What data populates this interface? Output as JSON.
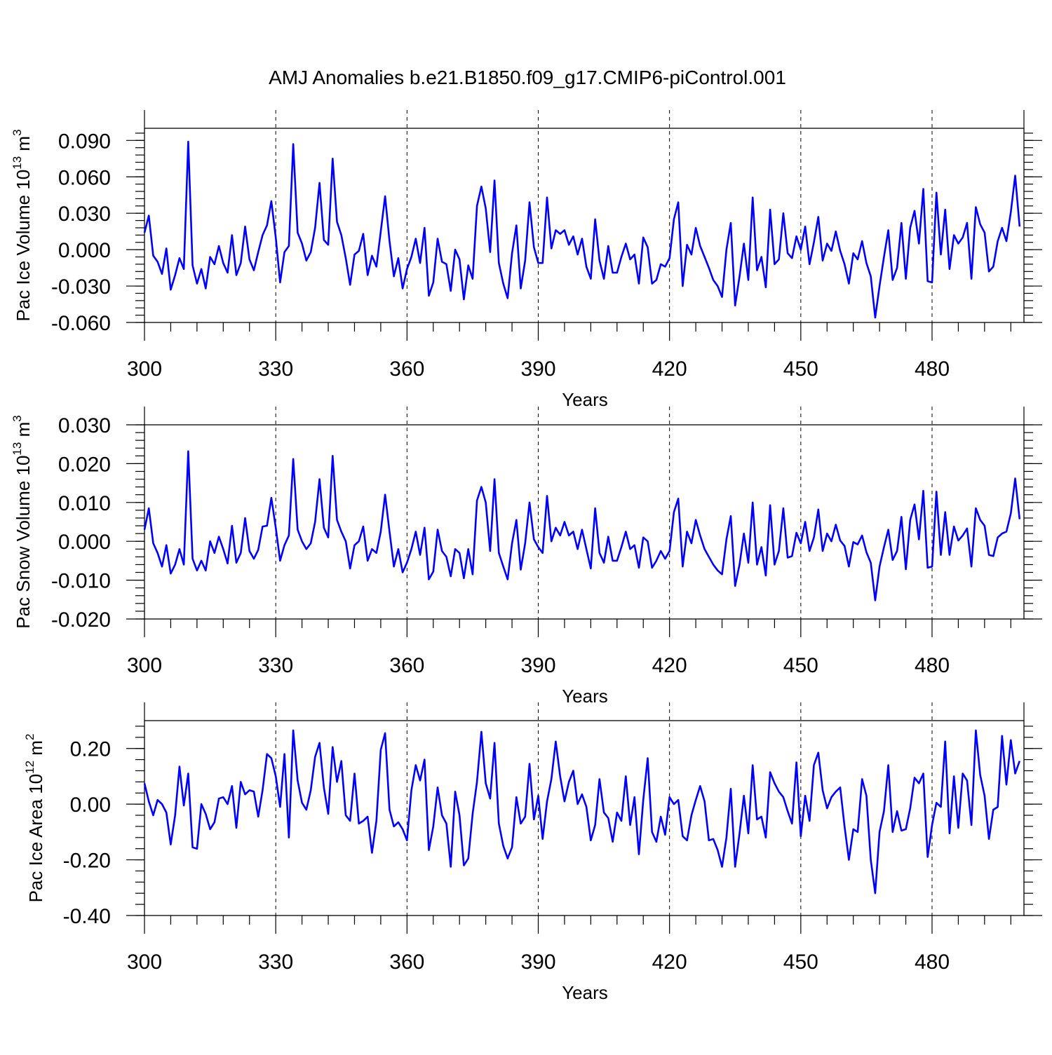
{
  "title": "AMJ Anomalies b.e21.B1850.f09_g17.CMIP6-piControl.001",
  "line_color": "#0000ff",
  "chart_data": [
    {
      "type": "line",
      "ylabel_main": "Pac Ice Volume 10",
      "ylabel_exp": "13",
      "ylabel_unit": " m",
      "ylabel_unit_exp": "3",
      "xlabel": "Years",
      "xlim": [
        300,
        501
      ],
      "ylim": [
        -0.06,
        0.1
      ],
      "yticks": [
        -0.06,
        -0.03,
        0.0,
        0.03,
        0.06,
        0.09
      ],
      "ytick_labels": [
        "-0.060",
        "-0.030",
        "0.000",
        "0.030",
        "0.060",
        "0.090"
      ],
      "xticks": [
        300,
        330,
        360,
        390,
        420,
        450,
        480
      ],
      "xtick_labels": [
        "300",
        "330",
        "360",
        "390",
        "420",
        "450",
        "480"
      ],
      "grid_x": [
        330,
        360,
        390,
        420,
        450,
        480
      ],
      "x_start": 300,
      "values": [
        0.014,
        0.028,
        -0.005,
        -0.01,
        -0.02,
        0.001,
        -0.033,
        -0.021,
        -0.007,
        -0.016,
        0.089,
        -0.013,
        -0.028,
        -0.016,
        -0.032,
        -0.006,
        -0.012,
        0.003,
        -0.011,
        -0.019,
        0.012,
        -0.021,
        -0.011,
        0.019,
        -0.008,
        -0.017,
        -0.002,
        0.012,
        0.02,
        0.04,
        0.01,
        -0.027,
        -0.002,
        0.003,
        0.087,
        0.014,
        0.005,
        -0.009,
        -0.002,
        0.018,
        0.055,
        0.008,
        0.004,
        0.075,
        0.023,
        0.012,
        -0.007,
        -0.029,
        -0.004,
        -0.001,
        0.013,
        -0.021,
        -0.005,
        -0.014,
        0.015,
        0.044,
        0.007,
        -0.022,
        -0.007,
        -0.032,
        -0.016,
        -0.006,
        0.009,
        -0.011,
        0.018,
        -0.038,
        -0.027,
        0.009,
        -0.01,
        -0.012,
        -0.034,
        0.0,
        -0.008,
        -0.041,
        -0.013,
        -0.024,
        0.036,
        0.052,
        0.034,
        -0.002,
        0.057,
        -0.011,
        -0.028,
        -0.04,
        -0.003,
        0.02,
        -0.032,
        -0.009,
        0.039,
        0.002,
        -0.011,
        -0.011,
        0.043,
        0.001,
        0.016,
        0.013,
        0.016,
        0.004,
        0.011,
        -0.004,
        0.009,
        -0.014,
        -0.024,
        0.025,
        -0.009,
        -0.024,
        0.003,
        -0.019,
        -0.019,
        -0.006,
        0.005,
        -0.008,
        -0.004,
        -0.028,
        0.01,
        0.002,
        -0.028,
        -0.025,
        -0.012,
        -0.014,
        -0.007,
        0.025,
        0.039,
        -0.03,
        0.004,
        -0.004,
        0.018,
        0.003,
        -0.006,
        -0.015,
        -0.025,
        -0.03,
        -0.039,
        0.0,
        0.022,
        -0.046,
        -0.022,
        0.005,
        -0.025,
        0.043,
        -0.017,
        -0.006,
        -0.031,
        0.033,
        -0.012,
        -0.008,
        0.03,
        -0.003,
        -0.007,
        0.011,
        0.0,
        0.019,
        -0.012,
        0.006,
        0.027,
        -0.009,
        0.005,
        -0.001,
        0.015,
        -0.001,
        -0.012,
        -0.028,
        -0.003,
        -0.008,
        0.007,
        -0.011,
        -0.022,
        -0.056,
        -0.03,
        -0.006,
        0.016,
        -0.025,
        -0.015,
        0.022,
        -0.024,
        0.018,
        0.032,
        0.005,
        0.05,
        -0.026,
        -0.027,
        0.047,
        -0.004,
        0.033,
        -0.016,
        0.012,
        0.005,
        0.01,
        0.022,
        -0.024,
        0.035,
        0.021,
        0.014,
        -0.018,
        -0.014,
        0.007,
        0.018,
        0.007,
        0.031,
        0.061,
        0.019
      ]
    },
    {
      "type": "line",
      "ylabel_main": "Pac Snow Volume 10",
      "ylabel_exp": "13",
      "ylabel_unit": " m",
      "ylabel_unit_exp": "3",
      "xlabel": "Years",
      "xlim": [
        300,
        501
      ],
      "ylim": [
        -0.02,
        0.03
      ],
      "yticks": [
        -0.02,
        -0.01,
        0.0,
        0.01,
        0.02,
        0.03
      ],
      "ytick_labels": [
        "-0.020",
        "-0.010",
        "0.000",
        "0.010",
        "0.020",
        "0.030"
      ],
      "xticks": [
        300,
        330,
        360,
        390,
        420,
        450,
        480
      ],
      "xtick_labels": [
        "300",
        "330",
        "360",
        "390",
        "420",
        "450",
        "480"
      ],
      "grid_x": [
        330,
        360,
        390,
        420,
        450,
        480
      ],
      "x_start": 300,
      "values": [
        0.003,
        0.0085,
        -0.0005,
        -0.003,
        -0.0065,
        -0.001,
        -0.0083,
        -0.006,
        -0.002,
        -0.006,
        0.0232,
        -0.0045,
        -0.0075,
        -0.005,
        -0.0075,
        0.0,
        -0.003,
        0.0012,
        -0.002,
        -0.0057,
        0.004,
        -0.0055,
        -0.003,
        0.006,
        -0.0025,
        -0.0045,
        -0.0022,
        0.0038,
        0.004,
        0.0112,
        0.0035,
        -0.005,
        -0.001,
        0.0015,
        0.0212,
        0.003,
        0.0,
        -0.002,
        -0.0005,
        0.005,
        0.016,
        0.0035,
        0.001,
        0.022,
        0.0055,
        0.0025,
        0.0,
        -0.007,
        -0.001,
        0.0,
        0.0038,
        -0.005,
        -0.002,
        -0.003,
        0.0025,
        0.012,
        0.0025,
        -0.0065,
        -0.002,
        -0.008,
        -0.0055,
        -0.002,
        0.0025,
        -0.0035,
        0.0035,
        -0.0098,
        -0.0078,
        0.003,
        -0.0025,
        -0.004,
        -0.009,
        -0.002,
        -0.003,
        -0.0095,
        -0.002,
        -0.0085,
        0.0105,
        0.014,
        0.01,
        -0.0025,
        0.016,
        -0.003,
        -0.0065,
        -0.0098,
        -0.0005,
        0.0055,
        -0.0073,
        -0.0005,
        0.01,
        0.0005,
        -0.0015,
        -0.003,
        0.0117,
        0.0,
        0.0035,
        0.0015,
        0.005,
        0.0015,
        0.0025,
        -0.002,
        0.003,
        -0.002,
        -0.007,
        0.0085,
        -0.003,
        -0.0055,
        0.0012,
        -0.005,
        -0.005,
        -0.0015,
        0.0025,
        -0.002,
        -0.001,
        -0.0068,
        0.001,
        0.0,
        -0.0068,
        -0.005,
        -0.0025,
        -0.0045,
        -0.0025,
        0.0075,
        0.011,
        -0.0065,
        0.0025,
        -0.0005,
        0.0055,
        0.0015,
        -0.002,
        -0.004,
        -0.006,
        -0.0075,
        -0.0085,
        0.0005,
        0.0065,
        -0.0115,
        -0.006,
        0.002,
        -0.0055,
        0.01,
        -0.006,
        -0.0015,
        -0.0088,
        0.0093,
        -0.006,
        -0.0025,
        0.0085,
        -0.0042,
        -0.0038,
        0.0022,
        -0.0005,
        0.005,
        -0.0025,
        0.001,
        0.0082,
        -0.0025,
        0.002,
        0.0,
        0.0043,
        0.0002,
        -0.0012,
        -0.0065,
        -0.0002,
        -0.0008,
        0.0015,
        -0.0028,
        -0.0055,
        -0.0152,
        -0.0065,
        -0.0015,
        0.003,
        -0.0048,
        -0.0025,
        0.0063,
        -0.0072,
        0.0055,
        0.0095,
        0.0005,
        0.013,
        -0.0068,
        -0.0065,
        0.0128,
        -0.0035,
        0.0075,
        -0.0035,
        0.0038,
        0.0002,
        0.0015,
        0.0033,
        -0.0065,
        0.0085,
        0.0055,
        0.004,
        -0.0035,
        -0.0038,
        0.001,
        0.002,
        0.0025,
        0.0072,
        0.0162,
        0.0057
      ]
    },
    {
      "type": "line",
      "ylabel_main": "Pac Ice Area 10",
      "ylabel_exp": "12",
      "ylabel_unit": " m",
      "ylabel_unit_exp": "2",
      "xlabel": "Years",
      "xlim": [
        300,
        501
      ],
      "ylim": [
        -0.4,
        0.3
      ],
      "yticks": [
        -0.4,
        -0.2,
        0.0,
        0.2
      ],
      "ytick_labels": [
        "-0.40",
        "-0.20",
        "0.00",
        "0.20"
      ],
      "xticks": [
        300,
        330,
        360,
        390,
        420,
        450,
        480
      ],
      "xtick_labels": [
        "300",
        "330",
        "360",
        "390",
        "420",
        "450",
        "480"
      ],
      "grid_x": [
        330,
        360,
        390,
        420,
        450,
        480
      ],
      "x_start": 300,
      "values": [
        0.075,
        0.01,
        -0.04,
        0.015,
        0.0,
        -0.03,
        -0.145,
        -0.04,
        0.135,
        -0.005,
        0.11,
        -0.155,
        -0.16,
        0.0,
        -0.035,
        -0.09,
        -0.065,
        0.02,
        0.025,
        0.0,
        0.065,
        -0.085,
        0.08,
        0.035,
        0.05,
        0.045,
        -0.045,
        0.05,
        0.18,
        0.165,
        0.1,
        -0.01,
        0.18,
        -0.12,
        0.265,
        0.085,
        0.005,
        -0.02,
        0.05,
        0.17,
        0.22,
        0.06,
        -0.035,
        0.205,
        0.08,
        0.155,
        -0.04,
        -0.06,
        0.11,
        -0.07,
        -0.06,
        -0.045,
        -0.175,
        -0.06,
        0.195,
        0.255,
        -0.02,
        -0.08,
        -0.065,
        -0.09,
        -0.13,
        0.05,
        0.14,
        0.085,
        0.16,
        -0.165,
        -0.08,
        0.06,
        -0.04,
        -0.07,
        -0.225,
        0.045,
        -0.04,
        -0.22,
        -0.195,
        -0.035,
        0.08,
        0.26,
        0.075,
        0.02,
        0.22,
        -0.07,
        -0.15,
        -0.195,
        -0.155,
        0.025,
        -0.07,
        -0.045,
        0.145,
        -0.055,
        0.03,
        -0.125,
        0.01,
        0.09,
        0.225,
        0.1,
        0.01,
        0.08,
        0.12,
        0.0,
        0.035,
        -0.01,
        -0.13,
        -0.075,
        0.09,
        -0.03,
        -0.05,
        -0.135,
        -0.03,
        -0.06,
        0.1,
        -0.075,
        0.025,
        -0.18,
        0.015,
        0.165,
        -0.1,
        -0.135,
        -0.045,
        -0.11,
        0.025,
        0.0,
        0.015,
        -0.115,
        -0.13,
        -0.04,
        0.015,
        0.065,
        0.01,
        -0.13,
        -0.125,
        -0.165,
        -0.225,
        -0.12,
        0.055,
        -0.225,
        -0.105,
        0.03,
        -0.105,
        0.14,
        -0.055,
        -0.045,
        -0.12,
        0.115,
        0.075,
        0.045,
        0.025,
        -0.025,
        -0.07,
        0.15,
        -0.115,
        0.03,
        -0.06,
        0.14,
        0.185,
        0.05,
        -0.015,
        0.025,
        0.045,
        0.06,
        -0.08,
        -0.2,
        -0.09,
        -0.1,
        0.09,
        0.03,
        -0.2,
        -0.32,
        -0.1,
        -0.025,
        0.14,
        -0.1,
        -0.025,
        -0.095,
        -0.09,
        -0.015,
        0.095,
        0.075,
        0.11,
        -0.19,
        -0.075,
        0.005,
        -0.01,
        0.225,
        -0.105,
        0.1,
        -0.085,
        0.11,
        0.085,
        -0.075,
        0.265,
        0.105,
        0.03,
        -0.125,
        -0.02,
        -0.01,
        0.245,
        0.07,
        0.23,
        0.11,
        0.155
      ]
    }
  ]
}
